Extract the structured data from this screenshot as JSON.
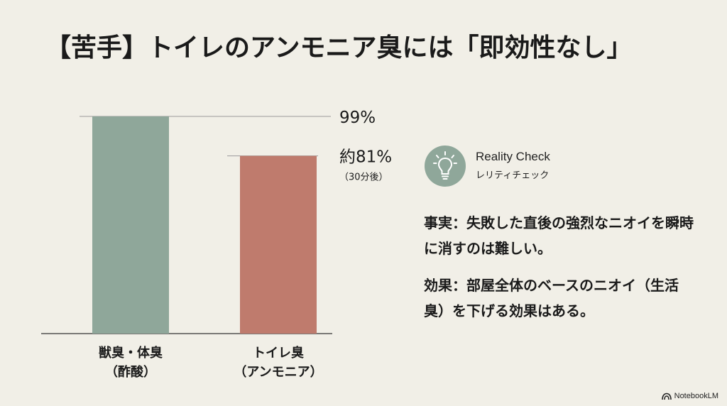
{
  "title": "【苦手】トイレのアンモニア臭には「即効性なし」",
  "chart_data": {
    "type": "bar",
    "categories": [
      [
        "獣臭・体臭",
        "（酢酸）"
      ],
      [
        "トイレ臭",
        "（アンモニア）"
      ]
    ],
    "values": [
      99,
      81
    ],
    "value_labels": [
      "99%",
      "約81%"
    ],
    "value_notes": [
      "",
      "（30分後）"
    ],
    "colors": [
      "#8fa79a",
      "#bf7b6d"
    ],
    "ylim": [
      0,
      99
    ]
  },
  "callout": {
    "icon": "lightbulb-icon",
    "title": "Reality Check",
    "subtitle": "レリティチェック"
  },
  "facts": [
    "事実：失敗した直後の強烈なニオイを瞬時に消すのは難しい。",
    "効果：部屋全体のベースのニオイ（生活臭）を下げる効果はある。"
  ],
  "brand": "NotebookLM"
}
